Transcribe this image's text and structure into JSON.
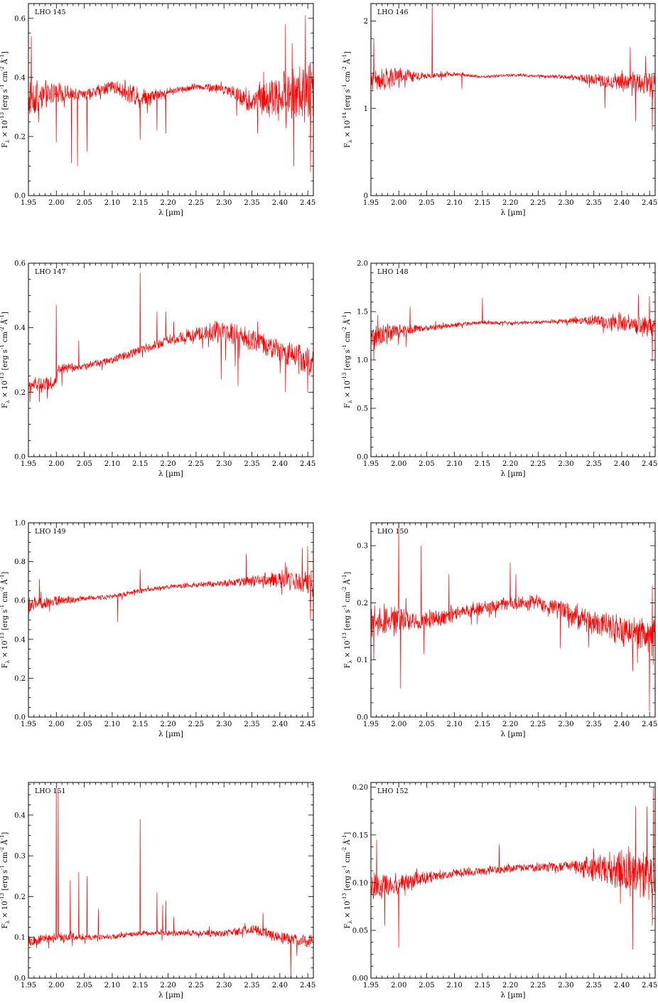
{
  "figure": {
    "line_color": "#ff0000",
    "axis_color": "#000000"
  },
  "chart_data": [
    {
      "type": "line",
      "label": "LHO 145",
      "xlabel": "λ [µm]",
      "ylabel": "F_λ × 10^-13 [erg s^-1 cm^-2 Å^-1]",
      "ylabel_exp": "-13",
      "xlim": [
        1.95,
        2.46
      ],
      "ylim": [
        0.0,
        0.65
      ],
      "xticks": [
        "1.95",
        "2.00",
        "2.05",
        "2.10",
        "2.15",
        "2.20",
        "2.25",
        "2.30",
        "2.35",
        "2.40",
        "2.45"
      ],
      "yticks": [
        "0.0",
        "0.2",
        "0.4",
        "0.6"
      ],
      "continuum_x": [
        1.95,
        2.0,
        2.05,
        2.1,
        2.15,
        2.2,
        2.25,
        2.3,
        2.35,
        2.4,
        2.46
      ],
      "continuum_y": [
        0.33,
        0.35,
        0.34,
        0.37,
        0.33,
        0.35,
        0.37,
        0.36,
        0.32,
        0.34,
        0.35
      ],
      "noise": [
        0.06,
        0.03,
        0.015,
        0.02,
        0.03,
        0.012,
        0.01,
        0.015,
        0.04,
        0.07,
        0.1
      ],
      "spikes": [
        [
          1.955,
          0.54
        ],
        [
          2.0,
          0.18
        ],
        [
          2.027,
          0.11
        ],
        [
          2.038,
          0.1
        ],
        [
          2.055,
          0.15
        ],
        [
          2.15,
          0.19
        ],
        [
          2.18,
          0.22
        ],
        [
          2.196,
          0.21
        ],
        [
          2.323,
          0.27
        ],
        [
          2.36,
          0.21
        ],
        [
          2.41,
          0.58
        ],
        [
          2.425,
          0.1
        ],
        [
          2.446,
          0.61
        ],
        [
          2.455,
          0.08
        ]
      ]
    },
    {
      "type": "line",
      "label": "LHO 146",
      "xlabel": "λ [µm]",
      "ylabel": "F_λ × 10^-14 [erg s^-1 cm^-2 Å^-1]",
      "ylabel_exp": "-14",
      "xlim": [
        1.95,
        2.46
      ],
      "ylim": [
        0.0,
        2.2
      ],
      "xticks": [
        "1.95",
        "2.00",
        "2.05",
        "2.10",
        "2.15",
        "2.20",
        "2.25",
        "2.30",
        "2.35",
        "2.40",
        "2.45"
      ],
      "yticks": [
        "0",
        "1",
        "2"
      ],
      "continuum_x": [
        1.95,
        2.0,
        2.05,
        2.1,
        2.15,
        2.2,
        2.25,
        2.3,
        2.35,
        2.4,
        2.46
      ],
      "continuum_y": [
        1.32,
        1.35,
        1.37,
        1.39,
        1.36,
        1.38,
        1.37,
        1.36,
        1.33,
        1.3,
        1.28
      ],
      "noise": [
        0.12,
        0.1,
        0.03,
        0.02,
        0.015,
        0.015,
        0.015,
        0.02,
        0.06,
        0.1,
        0.14
      ],
      "spikes": [
        [
          1.955,
          1.8
        ],
        [
          2.06,
          2.2
        ],
        [
          2.113,
          1.22
        ],
        [
          2.37,
          1.0
        ],
        [
          2.415,
          1.7
        ],
        [
          2.425,
          0.85
        ],
        [
          2.443,
          1.6
        ],
        [
          2.455,
          0.75
        ]
      ]
    },
    {
      "type": "line",
      "label": "LHO 147",
      "xlabel": "λ [µm]",
      "ylabel": "F_λ × 10^-13 [erg s^-1 cm^-2 Å^-1]",
      "ylabel_exp": "-13",
      "xlim": [
        1.95,
        2.46
      ],
      "ylim": [
        0.0,
        0.6
      ],
      "xticks": [
        "1.95",
        "2.00",
        "2.05",
        "2.10",
        "2.15",
        "2.20",
        "2.25",
        "2.30",
        "2.35",
        "2.40",
        "2.45"
      ],
      "yticks": [
        "0.0",
        "0.2",
        "0.4",
        "0.6"
      ],
      "continuum_x": [
        1.95,
        2.0,
        2.003,
        2.05,
        2.1,
        2.15,
        2.2,
        2.25,
        2.29,
        2.33,
        2.37,
        2.4,
        2.46
      ],
      "continuum_y": [
        0.22,
        0.23,
        0.27,
        0.28,
        0.3,
        0.33,
        0.36,
        0.38,
        0.39,
        0.37,
        0.35,
        0.33,
        0.29
      ],
      "noise": [
        0.02,
        0.02,
        0.015,
        0.01,
        0.01,
        0.012,
        0.015,
        0.02,
        0.03,
        0.03,
        0.03,
        0.03,
        0.04
      ],
      "spikes": [
        [
          1.953,
          0.17
        ],
        [
          1.97,
          0.17
        ],
        [
          2.0,
          0.47
        ],
        [
          2.01,
          0.22
        ],
        [
          2.04,
          0.36
        ],
        [
          2.15,
          0.57
        ],
        [
          2.18,
          0.45
        ],
        [
          2.196,
          0.45
        ],
        [
          2.21,
          0.42
        ],
        [
          2.295,
          0.24
        ],
        [
          2.32,
          0.28
        ],
        [
          2.325,
          0.22
        ],
        [
          2.36,
          0.42
        ],
        [
          2.41,
          0.2
        ],
        [
          2.45,
          0.2
        ]
      ]
    },
    {
      "type": "line",
      "label": "LHO 148",
      "xlabel": "λ [µm]",
      "ylabel": "F_λ × 10^-13 [erg s^-1 cm^-2 Å^-1]",
      "ylabel_exp": "-13",
      "xlim": [
        1.95,
        2.46
      ],
      "ylim": [
        0.0,
        2.0
      ],
      "xticks": [
        "1.95",
        "2.00",
        "2.05",
        "2.10",
        "2.15",
        "2.20",
        "2.25",
        "2.30",
        "2.35",
        "2.40",
        "2.45"
      ],
      "yticks": [
        "0.0",
        "0.5",
        "1.0",
        "1.5",
        "2.0"
      ],
      "continuum_x": [
        1.95,
        2.0,
        2.05,
        2.1,
        2.15,
        2.2,
        2.25,
        2.3,
        2.35,
        2.4,
        2.46
      ],
      "continuum_y": [
        1.22,
        1.3,
        1.33,
        1.36,
        1.39,
        1.38,
        1.39,
        1.4,
        1.41,
        1.38,
        1.33
      ],
      "noise": [
        0.1,
        0.07,
        0.03,
        0.02,
        0.02,
        0.015,
        0.015,
        0.02,
        0.05,
        0.08,
        0.1
      ],
      "spikes": [
        [
          1.955,
          1.0
        ],
        [
          2.02,
          1.55
        ],
        [
          2.15,
          1.64
        ],
        [
          2.43,
          1.68
        ],
        [
          2.45,
          1.66
        ],
        [
          2.455,
          0.98
        ]
      ]
    },
    {
      "type": "line",
      "label": "LHO 149",
      "xlabel": "λ [µm]",
      "ylabel": "F_λ × 10^-13 [erg s^-1 cm^-2 Å^-1]",
      "ylabel_exp": "-13",
      "xlim": [
        1.95,
        2.46
      ],
      "ylim": [
        0.0,
        1.0
      ],
      "xticks": [
        "1.95",
        "2.00",
        "2.05",
        "2.10",
        "2.15",
        "2.20",
        "2.25",
        "2.30",
        "2.35",
        "2.40",
        "2.45"
      ],
      "yticks": [
        "0.0",
        "0.2",
        "0.4",
        "0.6",
        "0.8",
        "1.0"
      ],
      "continuum_x": [
        1.95,
        2.0,
        2.05,
        2.1,
        2.15,
        2.2,
        2.25,
        2.3,
        2.35,
        2.4,
        2.46
      ],
      "continuum_y": [
        0.57,
        0.6,
        0.61,
        0.62,
        0.65,
        0.67,
        0.68,
        0.69,
        0.7,
        0.71,
        0.69
      ],
      "noise": [
        0.03,
        0.025,
        0.012,
        0.01,
        0.012,
        0.01,
        0.012,
        0.015,
        0.025,
        0.04,
        0.06
      ],
      "spikes": [
        [
          1.95,
          0.48
        ],
        [
          1.97,
          0.71
        ],
        [
          2.11,
          0.49
        ],
        [
          2.15,
          0.76
        ],
        [
          2.34,
          0.84
        ],
        [
          2.44,
          0.87
        ],
        [
          2.45,
          0.88
        ],
        [
          2.455,
          0.5
        ]
      ]
    },
    {
      "type": "line",
      "label": "LHO 150",
      "xlabel": "λ [µm]",
      "ylabel": "F_λ × 10^-13 [erg s^-1 cm^-2 Å^-1]",
      "ylabel_exp": "-13",
      "xlim": [
        1.95,
        2.46
      ],
      "ylim": [
        0.0,
        0.34
      ],
      "xticks": [
        "1.95",
        "2.00",
        "2.05",
        "2.10",
        "2.15",
        "2.20",
        "2.25",
        "2.30",
        "2.35",
        "2.40",
        "2.45"
      ],
      "yticks": [
        "0.0",
        "0.1",
        "0.2",
        "0.3"
      ],
      "continuum_x": [
        1.95,
        2.0,
        2.05,
        2.1,
        2.15,
        2.2,
        2.25,
        2.29,
        2.33,
        2.37,
        2.41,
        2.46
      ],
      "continuum_y": [
        0.17,
        0.17,
        0.17,
        0.18,
        0.19,
        0.2,
        0.2,
        0.19,
        0.17,
        0.16,
        0.15,
        0.14
      ],
      "noise": [
        0.025,
        0.02,
        0.015,
        0.012,
        0.01,
        0.01,
        0.012,
        0.015,
        0.02,
        0.02,
        0.025,
        0.03
      ],
      "spikes": [
        [
          1.955,
          0.1
        ],
        [
          2.0,
          0.34
        ],
        [
          2.003,
          0.05
        ],
        [
          2.04,
          0.3
        ],
        [
          2.045,
          0.11
        ],
        [
          2.09,
          0.25
        ],
        [
          2.2,
          0.27
        ],
        [
          2.21,
          0.25
        ],
        [
          2.29,
          0.12
        ],
        [
          2.42,
          0.08
        ],
        [
          2.45,
          0.01
        ],
        [
          2.455,
          0.23
        ]
      ]
    },
    {
      "type": "line",
      "label": "LHO 151",
      "xlabel": "λ [µm]",
      "ylabel": "F_λ × 10^-13 [erg s^-1 cm^-2 Å^-1]",
      "ylabel_exp": "-13",
      "xlim": [
        1.95,
        2.46
      ],
      "ylim": [
        0.0,
        0.48
      ],
      "xticks": [
        "1.95",
        "2.00",
        "2.05",
        "2.10",
        "2.15",
        "2.20",
        "2.25",
        "2.30",
        "2.35",
        "2.40",
        "2.45"
      ],
      "yticks": [
        "0.0",
        "0.1",
        "0.2",
        "0.3",
        "0.4"
      ],
      "continuum_x": [
        1.95,
        2.0,
        2.05,
        2.1,
        2.15,
        2.2,
        2.25,
        2.3,
        2.35,
        2.4,
        2.46
      ],
      "continuum_y": [
        0.09,
        0.1,
        0.1,
        0.1,
        0.11,
        0.11,
        0.11,
        0.11,
        0.12,
        0.1,
        0.09
      ],
      "noise": [
        0.012,
        0.01,
        0.008,
        0.006,
        0.006,
        0.006,
        0.006,
        0.008,
        0.01,
        0.012,
        0.015
      ],
      "spikes": [
        [
          2.0,
          0.47
        ],
        [
          2.003,
          0.46
        ],
        [
          2.025,
          0.24
        ],
        [
          2.04,
          0.26
        ],
        [
          2.055,
          0.25
        ],
        [
          2.075,
          0.17
        ],
        [
          2.15,
          0.39
        ],
        [
          2.18,
          0.21
        ],
        [
          2.19,
          0.18
        ],
        [
          2.196,
          0.19
        ],
        [
          2.21,
          0.15
        ],
        [
          2.37,
          0.16
        ],
        [
          2.42,
          0.0
        ]
      ]
    },
    {
      "type": "line",
      "label": "LHO 152",
      "xlabel": "λ [µm]",
      "ylabel": "F_λ × 10^-13 [erg s^-1 cm^-2 Å^-1]",
      "ylabel_exp": "-13",
      "xlim": [
        1.95,
        2.46
      ],
      "ylim": [
        0.0,
        0.205
      ],
      "xticks": [
        "1.95",
        "2.00",
        "2.05",
        "2.10",
        "2.15",
        "2.20",
        "2.25",
        "2.30",
        "2.35",
        "2.40",
        "2.45"
      ],
      "yticks": [
        "0.00",
        "0.05",
        "0.10",
        "0.15",
        "0.20"
      ],
      "continuum_x": [
        1.95,
        2.0,
        2.05,
        2.1,
        2.15,
        2.2,
        2.25,
        2.3,
        2.35,
        2.4,
        2.46
      ],
      "continuum_y": [
        0.095,
        0.1,
        0.105,
        0.11,
        0.112,
        0.115,
        0.116,
        0.117,
        0.116,
        0.113,
        0.11
      ],
      "noise": [
        0.012,
        0.01,
        0.006,
        0.004,
        0.004,
        0.004,
        0.004,
        0.005,
        0.012,
        0.02,
        0.025
      ],
      "spikes": [
        [
          1.96,
          0.145
        ],
        [
          1.975,
          0.055
        ],
        [
          2.0,
          0.032
        ],
        [
          2.18,
          0.14
        ],
        [
          2.42,
          0.03
        ],
        [
          2.425,
          0.18
        ],
        [
          2.445,
          0.18
        ],
        [
          2.455,
          0.055
        ],
        [
          2.457,
          0.2
        ]
      ]
    }
  ]
}
